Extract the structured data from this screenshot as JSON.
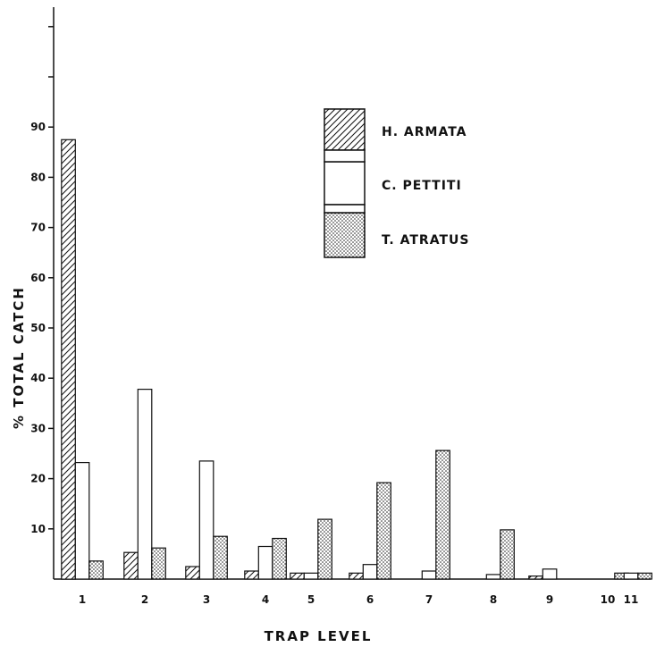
{
  "chart_data": {
    "type": "bar",
    "xlabel": "TRAP LEVEL",
    "ylabel": "% TOTAL CATCH",
    "ylim": [
      0,
      110
    ],
    "yticks": [
      10,
      20,
      30,
      40,
      50,
      60,
      70,
      80,
      90
    ],
    "categories": [
      "1",
      "2",
      "3",
      "4",
      "5",
      "6",
      "7",
      "8",
      "9",
      "10",
      "11"
    ],
    "series": [
      {
        "name": "H. ARMATA",
        "pattern": "hatched",
        "values": [
          87.5,
          5.3,
          2.5,
          1.6,
          1.2,
          1.2,
          null,
          null,
          0.6,
          null,
          null
        ]
      },
      {
        "name": "C. PETTITI",
        "pattern": "open",
        "values": [
          23.2,
          37.8,
          23.5,
          6.5,
          1.2,
          2.9,
          1.6,
          0.9,
          2.0,
          null,
          1.2
        ]
      },
      {
        "name": "T. ATRATUS",
        "pattern": "stippled",
        "values": [
          3.6,
          6.2,
          8.5,
          8.1,
          11.9,
          19.2,
          25.6,
          9.8,
          null,
          1.2,
          1.2
        ]
      }
    ],
    "legend_position": "upper-center",
    "grid": false
  }
}
